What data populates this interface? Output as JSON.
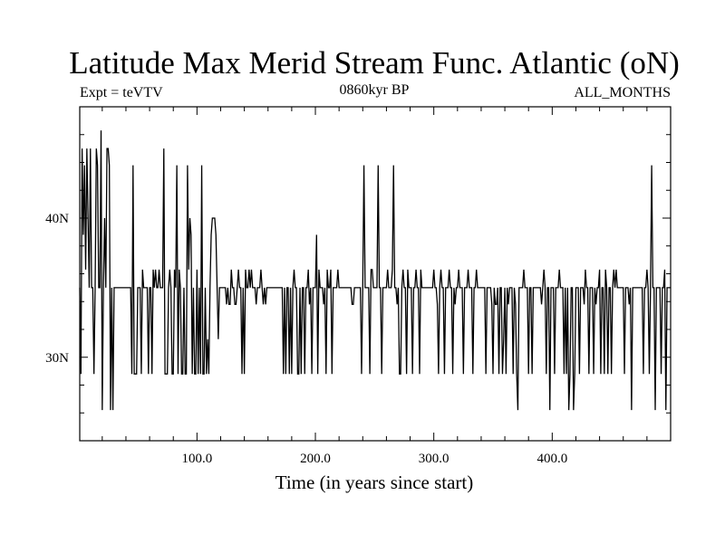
{
  "chart_data": {
    "type": "line",
    "title": "Latitude Max Merid Stream Func. Atlantic (oN)",
    "subtitle_left": "Expt = teVTV",
    "subtitle_center": "0860kyr BP",
    "subtitle_right": "ALL_MONTHS",
    "xlabel": "Time (in years since start)",
    "ylabel": "",
    "xlim": [
      1,
      500
    ],
    "ylim": [
      24,
      48
    ],
    "x_ticks": [
      100,
      200,
      300,
      400
    ],
    "x_tick_labels": [
      "100.0",
      "200.0",
      "300.0",
      "400.0"
    ],
    "y_ticks": [
      30,
      40
    ],
    "y_tick_labels": [
      "30N",
      "40N"
    ],
    "x_minor_step": 20,
    "y_minor_step": 2,
    "grid": false,
    "legend": "none",
    "line_color": "#000000",
    "baseline": 35,
    "levels": [
      26.2,
      28.8,
      31.3,
      33.8,
      35,
      36.3,
      38.8,
      40,
      43.8,
      45,
      46.3
    ],
    "series": [
      {
        "x_start": 1,
        "x_step": 1,
        "values": [
          35,
          28.8,
          45,
          38.8,
          43.8,
          36.3,
          45,
          40,
          35,
          45,
          35,
          35,
          28.8,
          35,
          45,
          43.8,
          35,
          35,
          46.3,
          26.2,
          35,
          40,
          35,
          45,
          45,
          43.8,
          26.2,
          35,
          26.2,
          35,
          35,
          35,
          35,
          35,
          35,
          35,
          35,
          35,
          35,
          35,
          35,
          35,
          35,
          35,
          28.8,
          43.8,
          28.8,
          28.8,
          28.8,
          35,
          35,
          35,
          28.8,
          36.3,
          35,
          35,
          35,
          35,
          28.8,
          35,
          35,
          28.8,
          36.3,
          35,
          36.3,
          35,
          35,
          36.3,
          35,
          35,
          35,
          45,
          28.8,
          28.8,
          28.8,
          35,
          36.3,
          35,
          28.8,
          28.8,
          36.3,
          35,
          43.8,
          28.8,
          36.3,
          35,
          28.8,
          28.8,
          35,
          28.8,
          28.8,
          43.8,
          36.3,
          40,
          38.8,
          28.8,
          35,
          28.8,
          28.8,
          36.3,
          28.8,
          35,
          28.8,
          43.8,
          28.8,
          28.8,
          35,
          28.8,
          31.3,
          28.8,
          35,
          38.8,
          40,
          40,
          40,
          38.8,
          35,
          31.3,
          35,
          35,
          35,
          35,
          35,
          35,
          33.8,
          35,
          33.8,
          33.8,
          36.3,
          35,
          35,
          33.8,
          33.8,
          35,
          36.3,
          35,
          35,
          28.8,
          35,
          28.8,
          36.3,
          35,
          35,
          36.3,
          35,
          36.3,
          35,
          35,
          35,
          33.8,
          35,
          35,
          35,
          36.3,
          35,
          33.8,
          35,
          33.8,
          35,
          35,
          35,
          35,
          35,
          35,
          35,
          35,
          35,
          35,
          35,
          35,
          35,
          35,
          28.8,
          35,
          28.8,
          35,
          35,
          28.8,
          35,
          28.8,
          35,
          36.3,
          35,
          35,
          28.8,
          28.8,
          35,
          28.8,
          35,
          35,
          28.8,
          35,
          35,
          36.3,
          33.8,
          35,
          28.8,
          35,
          35,
          35,
          38.8,
          28.8,
          36.3,
          35,
          35,
          35,
          33.8,
          35,
          28.8,
          36.3,
          35,
          35,
          36.3,
          28.8,
          35,
          35,
          35,
          35,
          36.3,
          35,
          35,
          35,
          35,
          35,
          35,
          35,
          35,
          35,
          35,
          35,
          33.8,
          33.8,
          35,
          35,
          35,
          35,
          35,
          35,
          28.8,
          35,
          43.8,
          35,
          35,
          35,
          35,
          28.8,
          36.3,
          36.3,
          35,
          35,
          35,
          35,
          43.8,
          35,
          35,
          28.8,
          35,
          35,
          35,
          35,
          36.3,
          35,
          35,
          35,
          36.3,
          43.8,
          35,
          35,
          33.8,
          35,
          28.8,
          28.8,
          35,
          36.3,
          35,
          35,
          28.8,
          36.3,
          35,
          35,
          35,
          28.8,
          35,
          35,
          36.3,
          35,
          35,
          28.8,
          36.3,
          35,
          35,
          35,
          35,
          35,
          35,
          35,
          35,
          35,
          35,
          36.3,
          35,
          35,
          33.8,
          28.8,
          35,
          36.3,
          35,
          35,
          28.8,
          35,
          35,
          35,
          36.3,
          35,
          35,
          28.8,
          35,
          33.8,
          35,
          35,
          36.3,
          35,
          35,
          35,
          28.8,
          35,
          35,
          35,
          36.3,
          35,
          35,
          35,
          28.8,
          35,
          35,
          36.3,
          35,
          35,
          35,
          35,
          35,
          35,
          35,
          28.8,
          35,
          35,
          35,
          35,
          33.8,
          28.8,
          35,
          33.8,
          33.8,
          35,
          28.8,
          35,
          35,
          28.8,
          31.3,
          35,
          28.8,
          35,
          33.8,
          35,
          35,
          35,
          28.8,
          35,
          33.8,
          28.8,
          26.2,
          35,
          35,
          35,
          35,
          36.3,
          35,
          35,
          35,
          28.8,
          35,
          35,
          28.8,
          35,
          35,
          35,
          35,
          35,
          35,
          35,
          33.8,
          35,
          36.3,
          35,
          28.8,
          35,
          35,
          26.2,
          35,
          35,
          35,
          28.8,
          35,
          35,
          35,
          36.3,
          35,
          35,
          35,
          28.8,
          35,
          28.8,
          35,
          26.2,
          28.8,
          35,
          35,
          26.2,
          28.8,
          35,
          35,
          35,
          28.8,
          35,
          35,
          35,
          33.8,
          36.3,
          35,
          35,
          28.8,
          35,
          35,
          35,
          28.8,
          35,
          33.8,
          35,
          35,
          36.3,
          28.8,
          35,
          35,
          28.8,
          36.3,
          35,
          28.8,
          35,
          35,
          28.8,
          35,
          36.3,
          35,
          36.3,
          35,
          35,
          35,
          35,
          35,
          35,
          28.8,
          35,
          35,
          35,
          33.8,
          35,
          26.2,
          35,
          35,
          35,
          35,
          35,
          35,
          35,
          35,
          35,
          28.8,
          35,
          35,
          36.3,
          35,
          28.8,
          35,
          43.8,
          35,
          35,
          26.2,
          35,
          35,
          35,
          35,
          28.8,
          35,
          35,
          36.3,
          26.2,
          35,
          35,
          35,
          35
        ]
      }
    ]
  }
}
